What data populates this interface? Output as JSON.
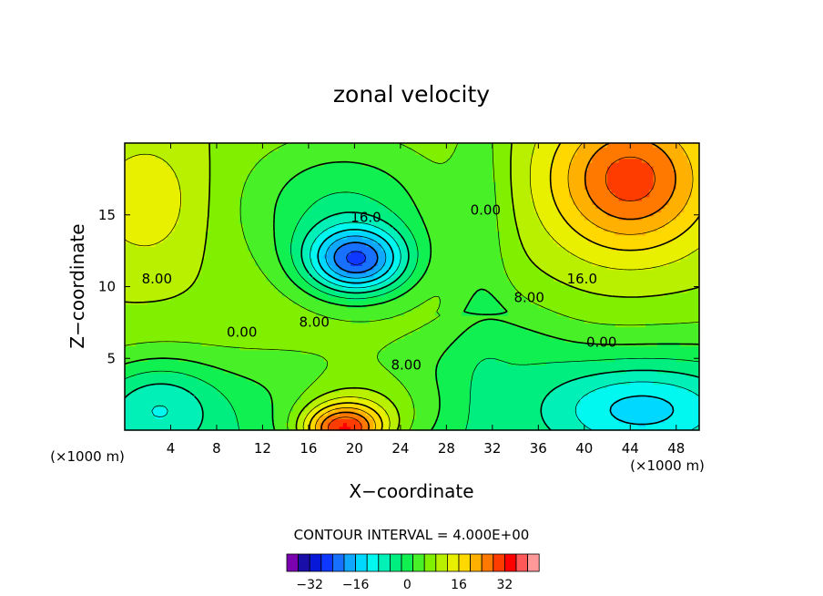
{
  "chart_data": {
    "type": "heatmap",
    "title": "zonal velocity",
    "xlabel": "X−coordinate",
    "ylabel": "Z−coordinate",
    "x_unit_left": "(×1000 m)",
    "x_unit_right": "(×1000 m)",
    "xlim": [
      0,
      50
    ],
    "ylim": [
      0,
      20
    ],
    "xticks": [
      4,
      8,
      12,
      16,
      20,
      24,
      28,
      32,
      36,
      40,
      44,
      48
    ],
    "yticks": [
      5,
      10,
      15
    ],
    "contour_interval_text": "CONTOUR INTERVAL = 4.000E+00",
    "contour_interval": 4,
    "contour_labels": [
      {
        "text": "16.0",
        "x": 21.0,
        "y": 14.8
      },
      {
        "text": "8.00",
        "x": 2.8,
        "y": 10.5
      },
      {
        "text": "8.00",
        "x": 16.5,
        "y": 7.5
      },
      {
        "text": "0.00",
        "x": 10.2,
        "y": 6.8
      },
      {
        "text": "8.00",
        "x": 24.5,
        "y": 4.5
      },
      {
        "text": "0.00",
        "x": 31.4,
        "y": 15.3
      },
      {
        "text": "16.0",
        "x": 39.8,
        "y": 10.5
      },
      {
        "text": "8.00",
        "x": 35.2,
        "y": 9.2
      },
      {
        "text": "0.00",
        "x": 41.5,
        "y": 6.1
      }
    ],
    "colorbar": {
      "ticks": [
        "−32",
        "−16",
        "0",
        "16",
        "32"
      ],
      "levels": [
        -40,
        -36,
        -32,
        -28,
        -24,
        -20,
        -16,
        -12,
        -8,
        -4,
        0,
        4,
        8,
        12,
        16,
        20,
        24,
        28,
        32,
        36,
        40
      ],
      "colors": [
        "#7a00b0",
        "#1a0ea8",
        "#0818d8",
        "#0e38ff",
        "#1870ff",
        "#10a8ff",
        "#00d8ff",
        "#00f8f0",
        "#00f0b8",
        "#00ee80",
        "#10f050",
        "#48f028",
        "#80f000",
        "#b8f000",
        "#e8f000",
        "#ffd800",
        "#ffb000",
        "#ff7800",
        "#ff3c00",
        "#ff0000",
        "#ff5858",
        "#ff9898"
      ]
    },
    "features": [
      {
        "kind": "min",
        "x": 20.2,
        "y": 11.8,
        "value": -30,
        "spread_x": 4.5,
        "spread_z": 2.4
      },
      {
        "kind": "min",
        "x": 19.0,
        "y": 15.5,
        "value": -12,
        "spread_x": 9.0,
        "spread_z": 5.0
      },
      {
        "kind": "max",
        "x": 44.0,
        "y": 17.5,
        "value": 22,
        "spread_x": 7.0,
        "spread_z": 5.0
      },
      {
        "kind": "max",
        "x": 19.0,
        "y": 0.0,
        "value": 29,
        "spread_x": 3.6,
        "spread_z": 1.8
      },
      {
        "kind": "max",
        "x": 21.0,
        "y": 1.5,
        "value": 10,
        "spread_x": 6.5,
        "spread_z": 3.0
      },
      {
        "kind": "min",
        "x": 45.0,
        "y": 1.5,
        "value": -14,
        "spread_x": 8.0,
        "spread_z": 3.0
      },
      {
        "kind": "min",
        "x": 3.0,
        "y": 1.8,
        "value": -10,
        "spread_x": 5.0,
        "spread_z": 3.2
      },
      {
        "kind": "max",
        "x": 2.0,
        "y": 16.0,
        "value": 7,
        "spread_x": 5.0,
        "spread_z": 4.5
      }
    ]
  }
}
